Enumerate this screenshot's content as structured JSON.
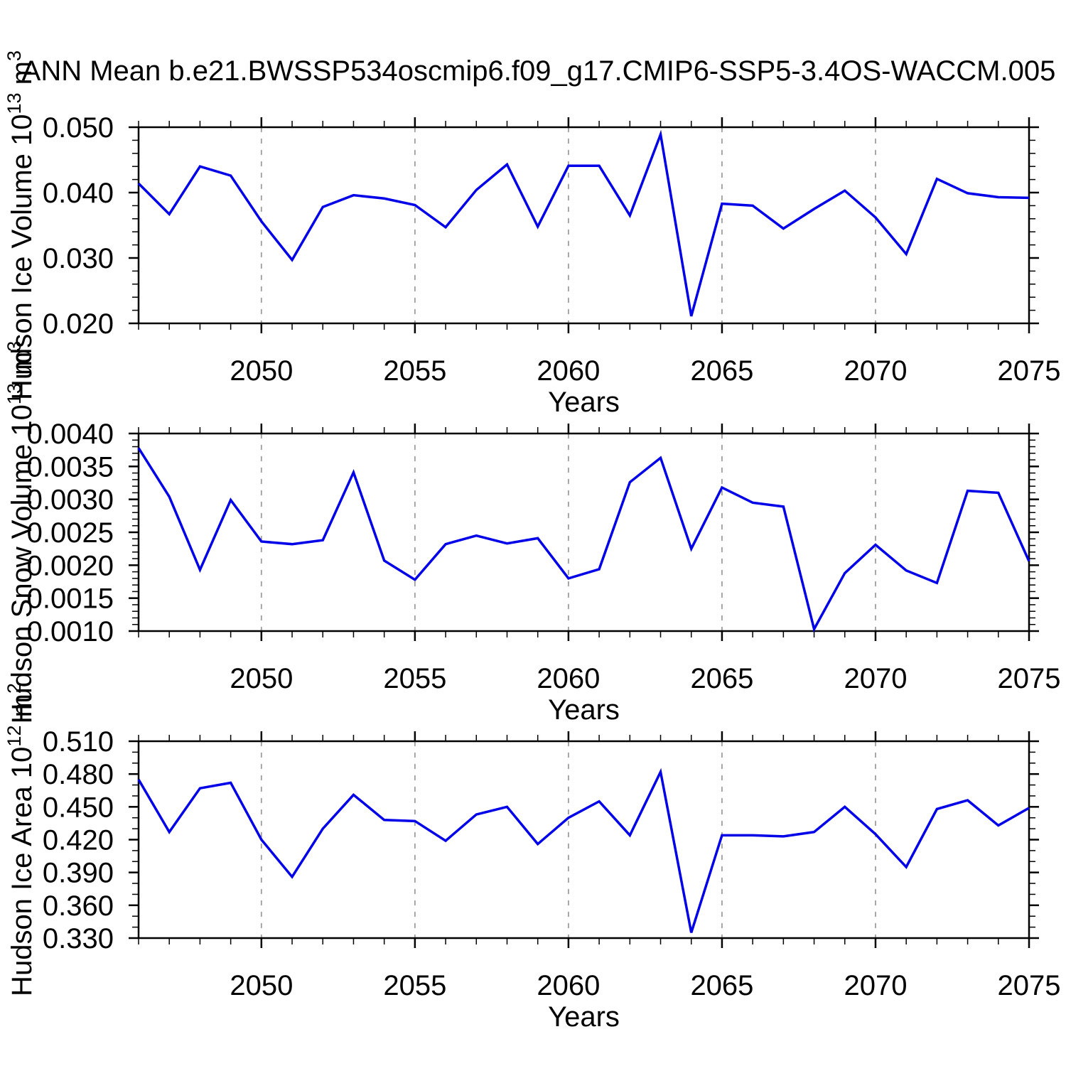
{
  "title": "ANN Mean b.e21.BWSSP534oscmip6.f09_g17.CMIP6-SSP5-3.4OS-WACCM.005",
  "colors": {
    "line": "#0000e8",
    "frame": "#000000",
    "gridline": "#9e9e9e",
    "text": "#000000"
  },
  "x_axis": {
    "label": "Years",
    "start": 2046,
    "end": 2075,
    "major_ticks": [
      2050,
      2055,
      2060,
      2065,
      2070,
      2075
    ],
    "minor_step": 1,
    "gridline_years": [
      2050,
      2055,
      2060,
      2065,
      2070
    ],
    "grid_style": "dashed"
  },
  "chart_data": [
    {
      "id": "ice-volume",
      "type": "line",
      "ylabel_text": "Hudson Ice Volume 10^13 m^3",
      "ylabel_segments": [
        {
          "t": "Hudson Ice Volume 10",
          "sup": false
        },
        {
          "t": "13",
          "sup": true
        },
        {
          "t": " m",
          "sup": false
        },
        {
          "t": "3",
          "sup": true
        }
      ],
      "xlabel": "Years",
      "ylim": [
        0.02,
        0.05
      ],
      "ytick_major": 0.01,
      "ytick_minor": 0.002,
      "ytick_decimals": 3,
      "grid": "x-dashed",
      "legend": "none",
      "years": [
        2046,
        2047,
        2048,
        2049,
        2050,
        2051,
        2052,
        2053,
        2054,
        2055,
        2056,
        2057,
        2058,
        2059,
        2060,
        2061,
        2062,
        2063,
        2064,
        2065,
        2066,
        2067,
        2068,
        2069,
        2070,
        2071,
        2072,
        2073,
        2074,
        2075
      ],
      "values": [
        0.0414,
        0.0367,
        0.044,
        0.0426,
        0.0356,
        0.0297,
        0.0378,
        0.0396,
        0.0391,
        0.0381,
        0.0347,
        0.0404,
        0.0443,
        0.0348,
        0.0441,
        0.0441,
        0.0365,
        0.0489,
        0.0211,
        0.0383,
        0.038,
        0.0345,
        0.0375,
        0.0403,
        0.0362,
        0.0306,
        0.0421,
        0.0399,
        0.0393,
        0.0392
      ]
    },
    {
      "id": "snow-volume",
      "type": "line",
      "ylabel_text": "Hudson Snow Volume 10^13 m^3",
      "ylabel_segments": [
        {
          "t": "Hudson Snow Volume 10",
          "sup": false
        },
        {
          "t": "13",
          "sup": true
        },
        {
          "t": " m",
          "sup": false
        },
        {
          "t": "3",
          "sup": true
        }
      ],
      "xlabel": "Years",
      "ylim": [
        0.001,
        0.004
      ],
      "ytick_major": 0.0005,
      "ytick_minor": 0.0001,
      "ytick_decimals": 4,
      "grid": "x-dashed",
      "legend": "none",
      "years": [
        2046,
        2047,
        2048,
        2049,
        2050,
        2051,
        2052,
        2053,
        2054,
        2055,
        2056,
        2057,
        2058,
        2059,
        2060,
        2061,
        2062,
        2063,
        2064,
        2065,
        2066,
        2067,
        2068,
        2069,
        2070,
        2071,
        2072,
        2073,
        2074,
        2075
      ],
      "values": [
        0.00378,
        0.00304,
        0.00193,
        0.00299,
        0.00236,
        0.00232,
        0.00238,
        0.00341,
        0.00207,
        0.00178,
        0.00232,
        0.00245,
        0.00233,
        0.00241,
        0.0018,
        0.00194,
        0.00326,
        0.00363,
        0.00225,
        0.00318,
        0.00295,
        0.00289,
        0.00103,
        0.00188,
        0.00231,
        0.00192,
        0.00173,
        0.00313,
        0.0031,
        0.00206
      ]
    },
    {
      "id": "ice-area",
      "type": "line",
      "ylabel_text": "Hudson Ice Area 10^12 m^2",
      "ylabel_segments": [
        {
          "t": "Hudson Ice Area 10",
          "sup": false
        },
        {
          "t": "12",
          "sup": true
        },
        {
          "t": " m",
          "sup": false
        },
        {
          "t": "2",
          "sup": true
        }
      ],
      "xlabel": "Years",
      "ylim": [
        0.33,
        0.51
      ],
      "ytick_major": 0.03,
      "ytick_minor": 0.01,
      "ytick_decimals": 3,
      "grid": "x-dashed",
      "legend": "none",
      "years": [
        2046,
        2047,
        2048,
        2049,
        2050,
        2051,
        2052,
        2053,
        2054,
        2055,
        2056,
        2057,
        2058,
        2059,
        2060,
        2061,
        2062,
        2063,
        2064,
        2065,
        2066,
        2067,
        2068,
        2069,
        2070,
        2071,
        2072,
        2073,
        2074,
        2075
      ],
      "values": [
        0.475,
        0.427,
        0.467,
        0.472,
        0.42,
        0.386,
        0.43,
        0.461,
        0.438,
        0.437,
        0.419,
        0.443,
        0.45,
        0.416,
        0.44,
        0.455,
        0.424,
        0.482,
        0.335,
        0.424,
        0.424,
        0.423,
        0.427,
        0.45,
        0.425,
        0.395,
        0.448,
        0.456,
        0.433,
        0.449
      ]
    }
  ]
}
